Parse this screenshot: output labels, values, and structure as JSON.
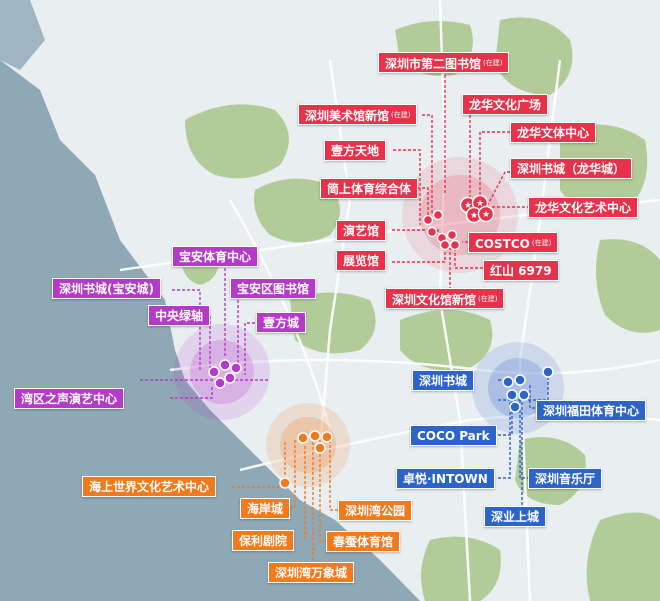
{
  "colors": {
    "sea": "#8fa8b6",
    "land": "#e9eef1",
    "green": "#a8c68a",
    "road": "#ffffff",
    "red": "#e8314a",
    "purple": "#b43bc7",
    "orange": "#f07a1e",
    "blue": "#2d64c8"
  },
  "clusters": {
    "longhua": {
      "color": "red",
      "labels": [
        {
          "text": "深圳市第二图书馆",
          "note": "(在建)"
        },
        {
          "text": "深圳美术馆新馆",
          "note": "(在建)"
        },
        {
          "text": "龙华文化广场",
          "note": ""
        },
        {
          "text": "龙华文体中心",
          "note": ""
        },
        {
          "text": "壹方天地",
          "note": ""
        },
        {
          "text": "深圳书城（龙华城）",
          "note": ""
        },
        {
          "text": "简上体育综合体",
          "note": ""
        },
        {
          "text": "龙华文化艺术中心",
          "note": ""
        },
        {
          "text": "演艺馆",
          "note": ""
        },
        {
          "text": "COSTCO",
          "note": "(在建)"
        },
        {
          "text": "展览馆",
          "note": ""
        },
        {
          "text": "红山 6979",
          "note": ""
        },
        {
          "text": "深圳文化馆新馆",
          "note": "(在建)"
        }
      ]
    },
    "baoan": {
      "color": "purple",
      "labels": [
        {
          "text": "宝安体育中心"
        },
        {
          "text": "深圳书城(宝安城)"
        },
        {
          "text": "宝安区图书馆"
        },
        {
          "text": "中央绿轴"
        },
        {
          "text": "壹方城"
        },
        {
          "text": "湾区之声演艺中心"
        }
      ]
    },
    "nanshan": {
      "color": "orange",
      "labels": [
        {
          "text": "海上世界文化艺术中心"
        },
        {
          "text": "海岸城"
        },
        {
          "text": "深圳湾公园"
        },
        {
          "text": "保利剧院"
        },
        {
          "text": "春蚕体育馆"
        },
        {
          "text": "深圳湾万象城"
        }
      ]
    },
    "futian": {
      "color": "blue",
      "labels": [
        {
          "text": "深圳书城"
        },
        {
          "text": "深圳福田体育中心"
        },
        {
          "text": "COCO Park"
        },
        {
          "text": "卓悦·INTOWN"
        },
        {
          "text": "深圳音乐厅"
        },
        {
          "text": "深业上城"
        }
      ]
    }
  }
}
